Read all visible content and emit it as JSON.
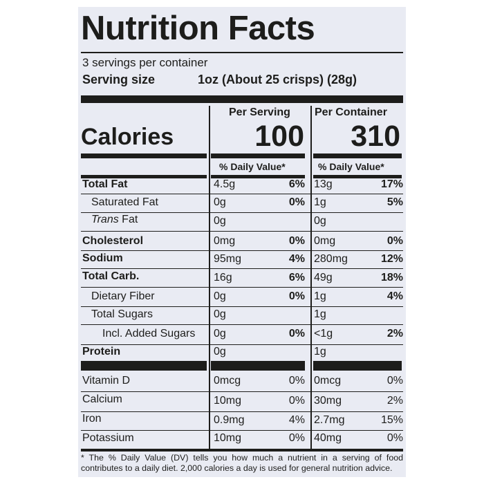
{
  "title": "Nutrition Facts",
  "servings_per_container": "3 servings per container",
  "serving_size": {
    "label": "Serving size",
    "value": "1oz (About 25 crisps) (28g)"
  },
  "columns": {
    "per_serving": "Per Serving",
    "per_container": "Per Container"
  },
  "calories": {
    "label": "Calories",
    "per_serving": "100",
    "per_container": "310"
  },
  "daily_value_heading": "% Daily Value*",
  "nutrients": [
    {
      "name": "Total Fat",
      "bold": true,
      "indent": 0,
      "serving_amount": "4.5g",
      "serving_dv": "6%",
      "container_amount": "13g",
      "container_dv": "17%"
    },
    {
      "name": "Saturated Fat",
      "bold": false,
      "indent": 1,
      "serving_amount": "0g",
      "serving_dv": "0%",
      "container_amount": "1g",
      "container_dv": "5%"
    },
    {
      "name_italic": "Trans",
      "name": " Fat",
      "bold": false,
      "indent": 1,
      "serving_amount": "0g",
      "serving_dv": "",
      "container_amount": "0g",
      "container_dv": ""
    },
    {
      "name": "Cholesterol",
      "bold": true,
      "indent": 0,
      "serving_amount": "0mg",
      "serving_dv": "0%",
      "container_amount": "0mg",
      "container_dv": "0%"
    },
    {
      "name": "Sodium",
      "bold": true,
      "indent": 0,
      "serving_amount": "95mg",
      "serving_dv": "4%",
      "container_amount": "280mg",
      "container_dv": "12%"
    },
    {
      "name": "Total Carb.",
      "bold": true,
      "indent": 0,
      "serving_amount": "16g",
      "serving_dv": "6%",
      "container_amount": "49g",
      "container_dv": "18%"
    },
    {
      "name": "Dietary Fiber",
      "bold": false,
      "indent": 1,
      "serving_amount": "0g",
      "serving_dv": "0%",
      "container_amount": "1g",
      "container_dv": "4%"
    },
    {
      "name": "Total Sugars",
      "bold": false,
      "indent": 1,
      "serving_amount": "0g",
      "serving_dv": "",
      "container_amount": "1g",
      "container_dv": ""
    },
    {
      "name": "Incl. Added Sugars",
      "bold": false,
      "indent": 2,
      "serving_amount": "0g",
      "serving_dv": "0%",
      "container_amount": "<1g",
      "container_dv": "2%"
    },
    {
      "name": "Protein",
      "bold": true,
      "indent": 0,
      "serving_amount": "0g",
      "serving_dv": "",
      "container_amount": "1g",
      "container_dv": ""
    }
  ],
  "vitamins": [
    {
      "name": "Vitamin D",
      "serving_amount": "0mcg",
      "serving_dv": "0%",
      "container_amount": "0mcg",
      "container_dv": "0%"
    },
    {
      "name": "Calcium",
      "serving_amount": "10mg",
      "serving_dv": "0%",
      "container_amount": "30mg",
      "container_dv": "2%"
    },
    {
      "name": "Iron",
      "serving_amount": "0.9mg",
      "serving_dv": "4%",
      "container_amount": "2.7mg",
      "container_dv": "15%"
    },
    {
      "name": "Potassium",
      "serving_amount": "10mg",
      "serving_dv": "0%",
      "container_amount": "40mg",
      "container_dv": "0%"
    }
  ],
  "footnote": "* The % Daily Value (DV) tells you how much a nutrient in a serving of food contributes to a daily diet. 2,000 calories a day is used for general nutrition advice."
}
